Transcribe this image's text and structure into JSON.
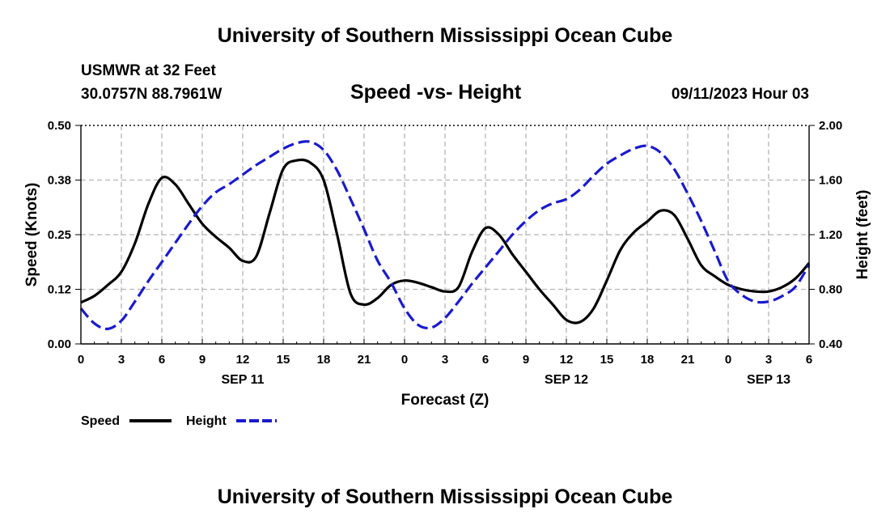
{
  "header": {
    "title": "University of Southern Mississippi Ocean Cube",
    "station": "USMWR at 32 Feet",
    "coords": "30.0757N  88.7961W",
    "subtitle": "Speed -vs- Height",
    "datetime": "09/11/2023 Hour 03"
  },
  "footer": {
    "title": "University of Southern Mississippi Ocean Cube"
  },
  "colors": {
    "speed": "#000000",
    "height": "#1a1acc",
    "grid": "#b4b4b4"
  },
  "chart_data": {
    "type": "line",
    "title": "Speed -vs- Height",
    "xlabel": "Forecast (Z)",
    "ylabel_left": "Speed (Knots)",
    "ylabel_right": "Height (feet)",
    "x_range": [
      0,
      54
    ],
    "x_ticks": [
      0,
      3,
      6,
      9,
      12,
      15,
      18,
      21,
      24,
      27,
      30,
      33,
      36,
      39,
      42,
      45,
      48,
      51,
      54
    ],
    "x_tick_labels": [
      "0",
      "3",
      "6",
      "9",
      "12",
      "15",
      "18",
      "21",
      "0",
      "3",
      "6",
      "9",
      "12",
      "15",
      "18",
      "21",
      "0",
      "3",
      "6"
    ],
    "date_labels": [
      {
        "hour": 12,
        "label": "SEP 11"
      },
      {
        "hour": 36,
        "label": "SEP 12"
      },
      {
        "hour": 51,
        "label": "SEP 13"
      }
    ],
    "ylim_left": [
      0,
      0.5
    ],
    "y_ticks_left": [
      0,
      0.125,
      0.25,
      0.375,
      0.5
    ],
    "y_tick_labels_left": [
      "0.00",
      "0.12",
      "0.25",
      "0.38",
      "0.50"
    ],
    "ylim_right": [
      0.4,
      2.0
    ],
    "y_ticks_right": [
      0.4,
      0.8,
      1.2,
      1.6,
      2.0
    ],
    "y_tick_labels_right": [
      "0.40",
      "0.80",
      "1.20",
      "1.60",
      "2.00"
    ],
    "grid": true,
    "legend": [
      {
        "name": "Speed",
        "style": "solid"
      },
      {
        "name": "Height",
        "style": "dashed"
      }
    ],
    "series": [
      {
        "name": "Speed",
        "axis": "left",
        "x": [
          0,
          1,
          2,
          3,
          4,
          5,
          6,
          7,
          8,
          9,
          10,
          11,
          12,
          13,
          14,
          15,
          16,
          17,
          18,
          19,
          20,
          21,
          22,
          23,
          24,
          25,
          26,
          27,
          28,
          29,
          30,
          31,
          32,
          33,
          34,
          35,
          36,
          37,
          38,
          39,
          40,
          41,
          42,
          43,
          44,
          45,
          46,
          47,
          48,
          49,
          50,
          51,
          52,
          53,
          54
        ],
        "values": [
          0.095,
          0.11,
          0.135,
          0.165,
          0.23,
          0.32,
          0.38,
          0.365,
          0.32,
          0.275,
          0.245,
          0.22,
          0.19,
          0.2,
          0.3,
          0.4,
          0.42,
          0.415,
          0.375,
          0.25,
          0.115,
          0.09,
          0.105,
          0.135,
          0.145,
          0.14,
          0.13,
          0.12,
          0.13,
          0.21,
          0.265,
          0.25,
          0.205,
          0.165,
          0.125,
          0.09,
          0.055,
          0.05,
          0.08,
          0.145,
          0.215,
          0.255,
          0.28,
          0.305,
          0.295,
          0.24,
          0.18,
          0.155,
          0.135,
          0.125,
          0.12,
          0.12,
          0.13,
          0.15,
          0.185
        ]
      },
      {
        "name": "Height",
        "axis": "right",
        "x": [
          0,
          1,
          2,
          3,
          4,
          5,
          6,
          7,
          8,
          9,
          10,
          11,
          12,
          13,
          14,
          15,
          16,
          17,
          18,
          19,
          20,
          21,
          22,
          23,
          24,
          25,
          26,
          27,
          28,
          29,
          30,
          31,
          32,
          33,
          34,
          35,
          36,
          37,
          38,
          39,
          40,
          41,
          42,
          43,
          44,
          45,
          46,
          47,
          48,
          49,
          50,
          51,
          52,
          53,
          54
        ],
        "values": [
          0.66,
          0.55,
          0.51,
          0.57,
          0.71,
          0.86,
          1.0,
          1.14,
          1.28,
          1.41,
          1.51,
          1.57,
          1.64,
          1.71,
          1.77,
          1.83,
          1.87,
          1.88,
          1.82,
          1.67,
          1.46,
          1.24,
          1.01,
          0.85,
          0.66,
          0.54,
          0.52,
          0.59,
          0.71,
          0.84,
          0.96,
          1.08,
          1.2,
          1.3,
          1.38,
          1.43,
          1.46,
          1.53,
          1.63,
          1.72,
          1.78,
          1.83,
          1.85,
          1.8,
          1.68,
          1.5,
          1.3,
          1.08,
          0.86,
          0.76,
          0.71,
          0.71,
          0.75,
          0.82,
          0.98
        ]
      }
    ]
  }
}
